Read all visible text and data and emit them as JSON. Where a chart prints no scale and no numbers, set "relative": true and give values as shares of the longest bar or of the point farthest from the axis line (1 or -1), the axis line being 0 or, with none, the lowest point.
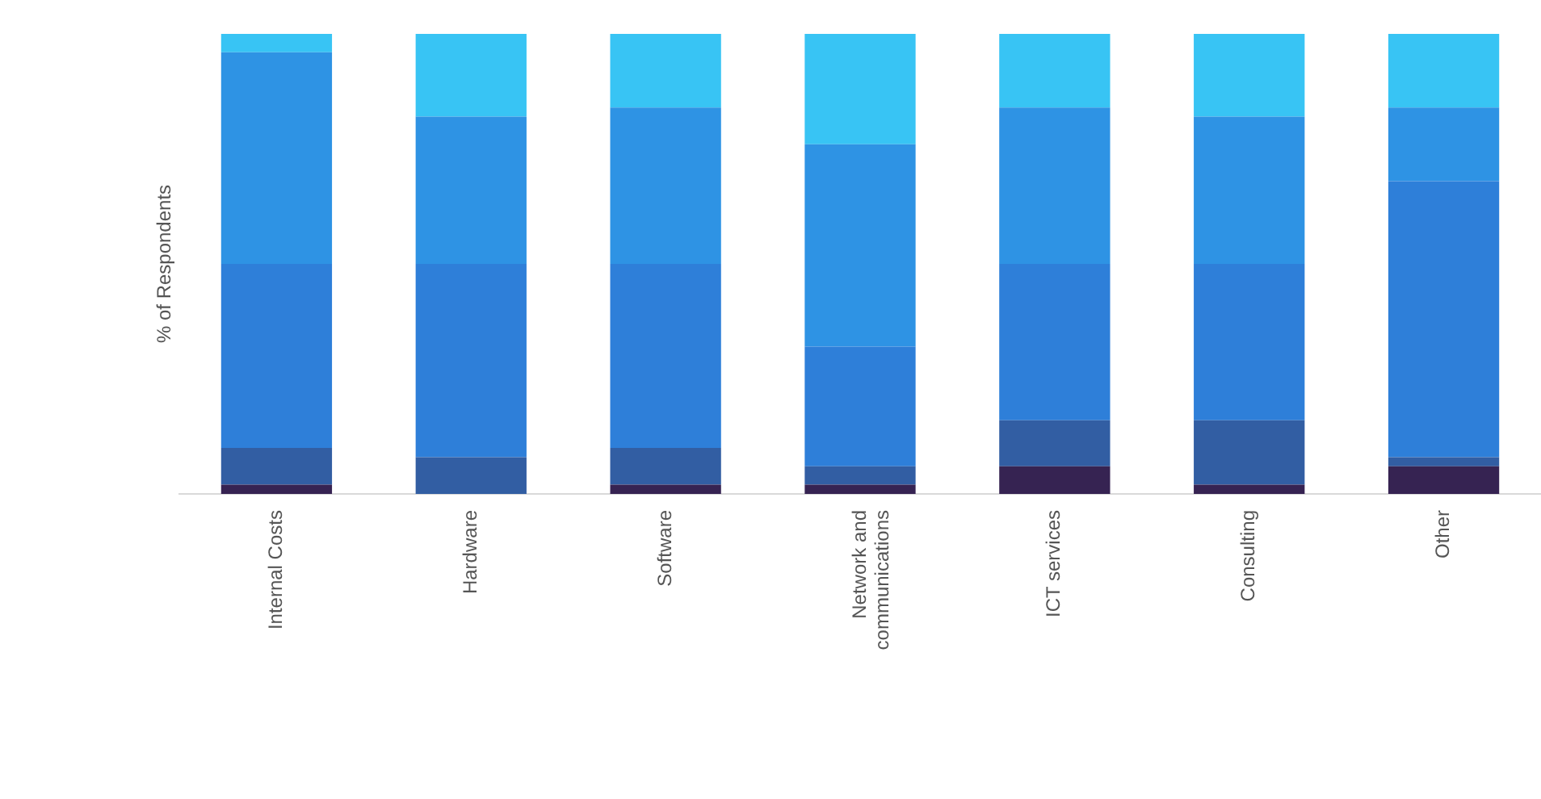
{
  "chart_data": {
    "type": "bar",
    "stacked": true,
    "relative": true,
    "ylabel": "% of Respondents",
    "categories": [
      "Internal Costs",
      "Hardware",
      "Software",
      "Network and communications",
      "ICT services",
      "Consulting",
      "Other"
    ],
    "series": [
      {
        "color": "#362352",
        "values": [
          0.02,
          0,
          0.02,
          0.02,
          0.06,
          0.02,
          0.06
        ]
      },
      {
        "color": "#325ea3",
        "values": [
          0.08,
          0.08,
          0.08,
          0.04,
          0.1,
          0.14,
          0.02
        ]
      },
      {
        "color": "#2e7fd9",
        "values": [
          0.4,
          0.42,
          0.4,
          0.26,
          0.34,
          0.34,
          0.6
        ]
      },
      {
        "color": "#2e93e4",
        "values": [
          0.46,
          0.32,
          0.34,
          0.44,
          0.34,
          0.32,
          0.16
        ]
      },
      {
        "color": "#38c4f4",
        "values": [
          0.04,
          0.18,
          0.16,
          0.24,
          0.16,
          0.18,
          0.16
        ]
      }
    ]
  }
}
